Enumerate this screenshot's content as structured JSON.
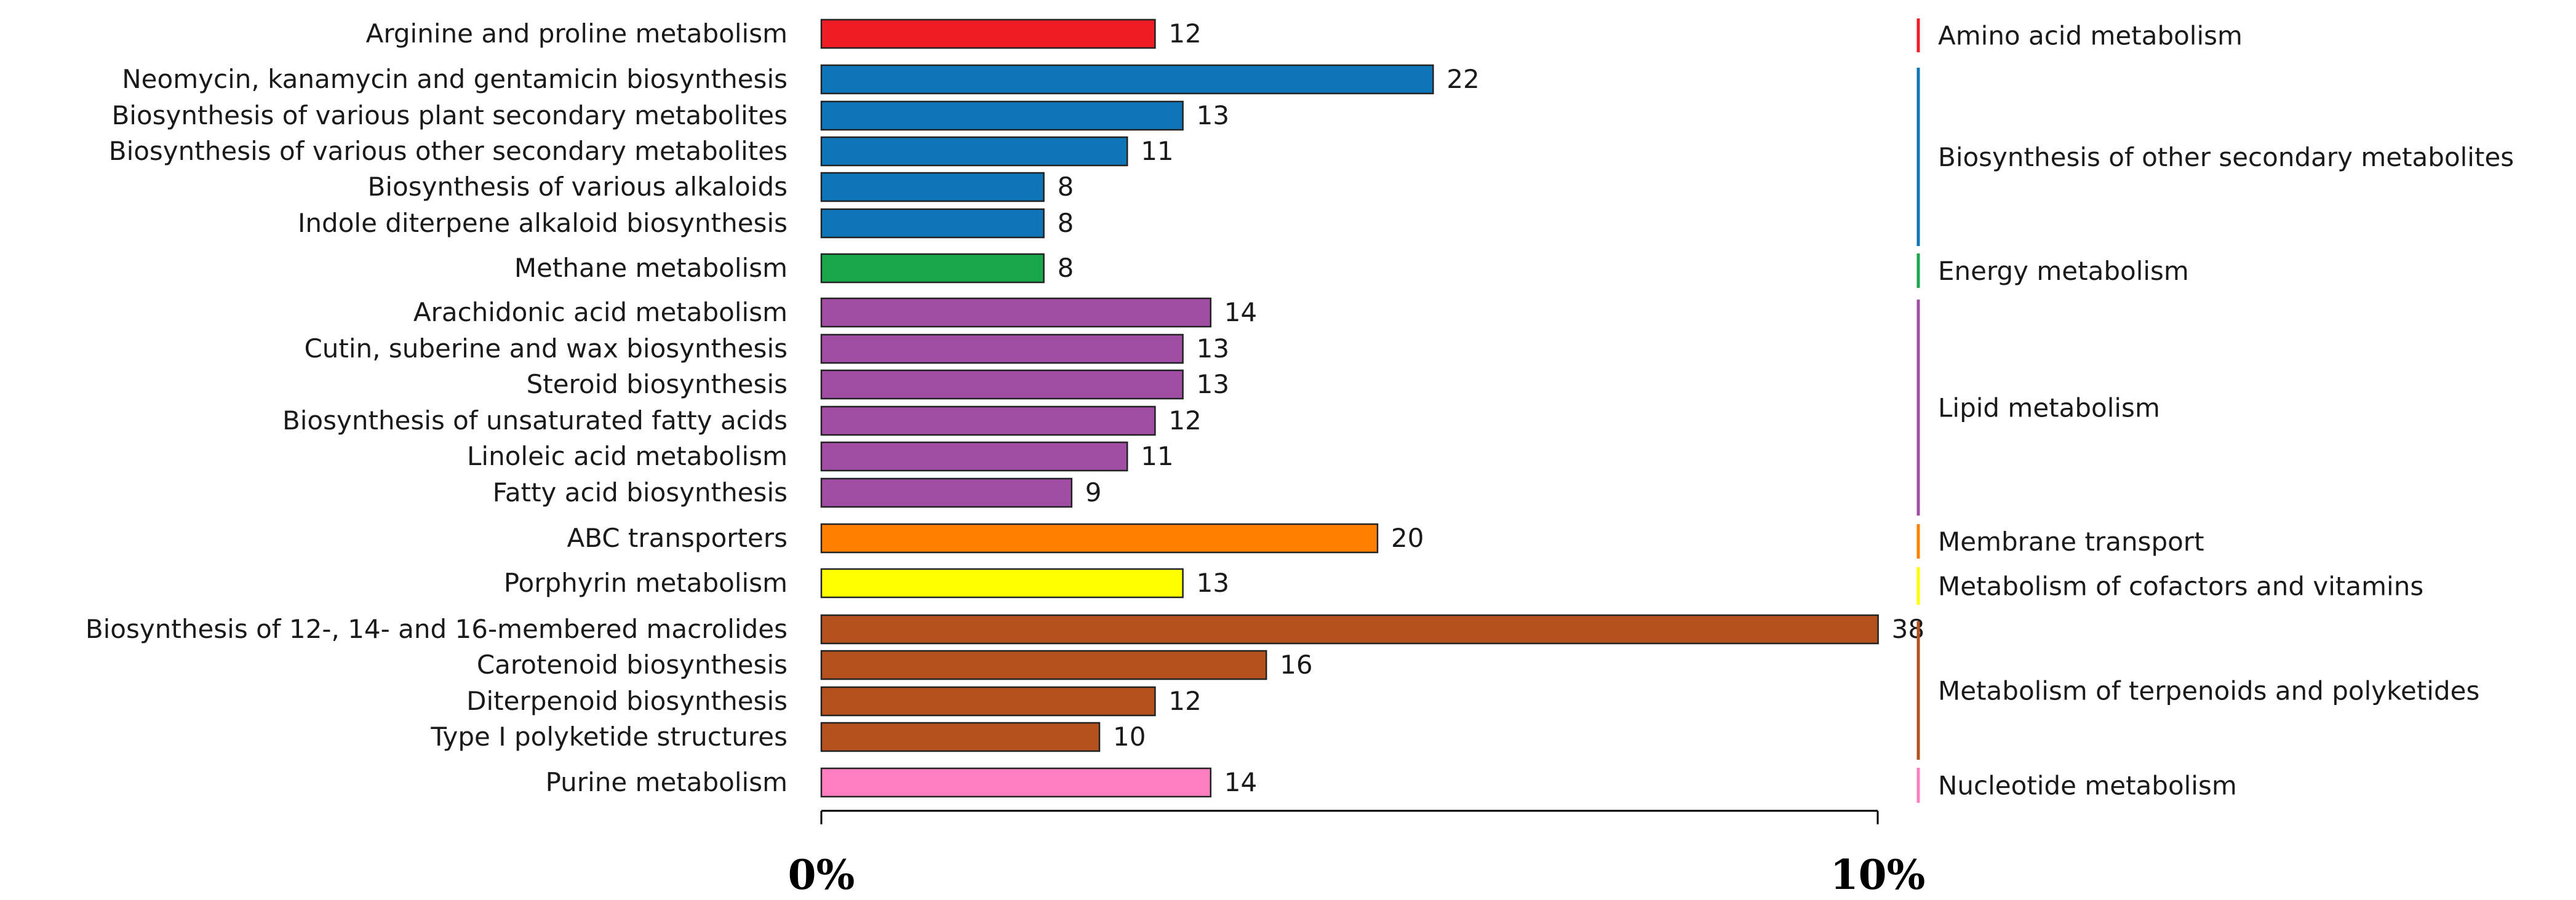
{
  "chart_data": {
    "type": "bar",
    "orientation": "horizontal",
    "x_ticks": [
      "0%",
      "10%"
    ],
    "categories": [
      {
        "name": "Arginine and proline metabolism",
        "value": 12,
        "group": 0
      },
      {
        "name": "Neomycin, kanamycin and gentamicin biosynthesis",
        "value": 22,
        "group": 1
      },
      {
        "name": "Biosynthesis of various plant secondary metabolites",
        "value": 13,
        "group": 1
      },
      {
        "name": "Biosynthesis of various other secondary metabolites",
        "value": 11,
        "group": 1
      },
      {
        "name": "Biosynthesis of various alkaloids",
        "value": 8,
        "group": 1
      },
      {
        "name": "Indole diterpene alkaloid biosynthesis",
        "value": 8,
        "group": 1
      },
      {
        "name": "Methane metabolism",
        "value": 8,
        "group": 2
      },
      {
        "name": "Arachidonic acid metabolism",
        "value": 14,
        "group": 3
      },
      {
        "name": "Cutin, suberine and wax biosynthesis",
        "value": 13,
        "group": 3
      },
      {
        "name": "Steroid biosynthesis",
        "value": 13,
        "group": 3
      },
      {
        "name": "Biosynthesis of unsaturated fatty acids",
        "value": 12,
        "group": 3
      },
      {
        "name": "Linoleic acid metabolism",
        "value": 11,
        "group": 3
      },
      {
        "name": "Fatty acid biosynthesis",
        "value": 9,
        "group": 3
      },
      {
        "name": "ABC transporters",
        "value": 20,
        "group": 4
      },
      {
        "name": "Porphyrin metabolism",
        "value": 13,
        "group": 5
      },
      {
        "name": "Biosynthesis of 12-, 14- and 16-membered macrolides",
        "value": 38,
        "group": 6
      },
      {
        "name": "Carotenoid biosynthesis",
        "value": 16,
        "group": 6
      },
      {
        "name": "Diterpenoid biosynthesis",
        "value": 12,
        "group": 6
      },
      {
        "name": "Type I polyketide structures",
        "value": 10,
        "group": 6
      },
      {
        "name": "Purine metabolism",
        "value": 14,
        "group": 7
      }
    ],
    "groups": [
      {
        "name": "Amino acid metabolism",
        "color": "#ee1c24"
      },
      {
        "name": "Biosynthesis of other secondary metabolites",
        "color": "#0e76b8"
      },
      {
        "name": "Energy metabolism",
        "color": "#1aa64a"
      },
      {
        "name": "Lipid metabolism",
        "color": "#a04da3"
      },
      {
        "name": "Membrane transport",
        "color": "#ff8000"
      },
      {
        "name": "Metabolism of cofactors and vitamins",
        "color": "#ffff00"
      },
      {
        "name": "Metabolism of terpenoids and polyketides",
        "color": "#b5501f"
      },
      {
        "name": "Nucleotide metabolism",
        "color": "#ff7fc2"
      }
    ],
    "grid": false,
    "legend": "right-side group labels"
  }
}
